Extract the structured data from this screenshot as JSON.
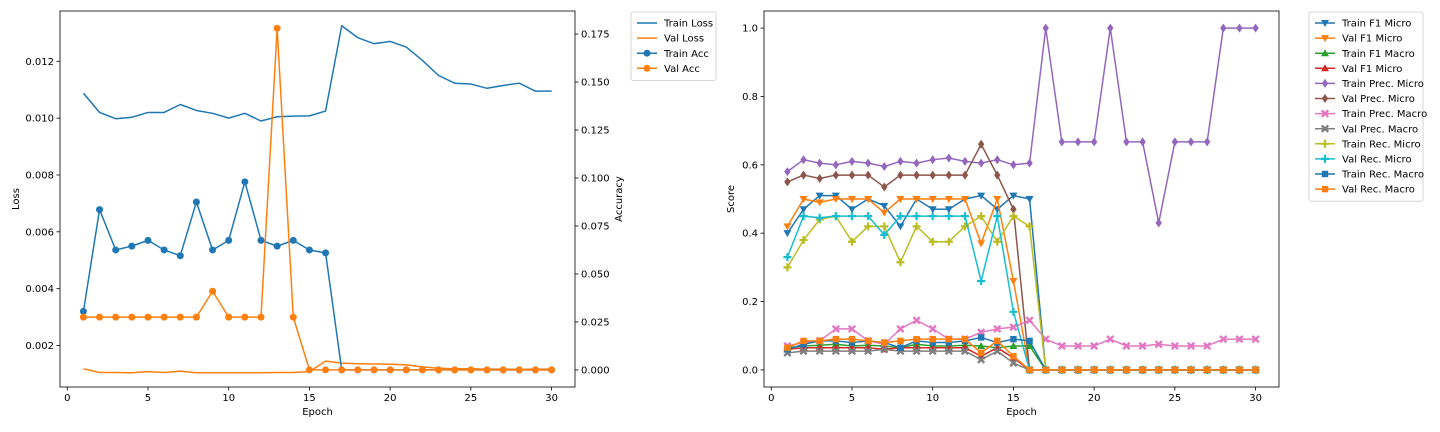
{
  "chart_data": [
    {
      "type": "line",
      "xlabel": "Epoch",
      "ylabel": "Loss",
      "y2label": "Accuracy",
      "xlim": [
        -0.45,
        31.45
      ],
      "ylim": [
        0.00054,
        0.01377
      ],
      "y2lim": [
        -0.0089,
        0.187
      ],
      "xticks": [
        0,
        5,
        10,
        15,
        20,
        25,
        30
      ],
      "yticks": [
        0.002,
        0.004,
        0.006,
        0.008,
        0.01,
        0.012
      ],
      "yticklabels": [
        "0.002",
        "0.004",
        "0.006",
        "0.008",
        "0.010",
        "0.012"
      ],
      "y2ticks": [
        0.0,
        0.025,
        0.05,
        0.075,
        0.1,
        0.125,
        0.15,
        0.175
      ],
      "y2ticklabels": [
        "0.000",
        "0.025",
        "0.050",
        "0.075",
        "0.100",
        "0.125",
        "0.150",
        "0.175"
      ],
      "legend_position": "outside-right",
      "x": [
        1,
        2,
        3,
        4,
        5,
        6,
        7,
        8,
        9,
        10,
        11,
        12,
        13,
        14,
        15,
        16,
        17,
        18,
        19,
        20,
        21,
        22,
        23,
        24,
        25,
        26,
        27,
        28,
        29,
        30
      ],
      "series": [
        {
          "name": "Train Loss",
          "axis": "left",
          "color": "#1f77b4",
          "marker": "none",
          "values": [
            0.01088,
            0.0102,
            0.00998,
            0.01003,
            0.0102,
            0.0102,
            0.01048,
            0.01027,
            0.01017,
            0.01,
            0.01017,
            0.0099,
            0.01005,
            0.01007,
            0.01008,
            0.01025,
            0.01325,
            0.01283,
            0.01262,
            0.0127,
            0.0125,
            0.01203,
            0.0115,
            0.01123,
            0.0112,
            0.01105,
            0.01115,
            0.01123,
            0.01095,
            0.01095
          ]
        },
        {
          "name": "Val Loss",
          "axis": "left",
          "color": "#ff7f0e",
          "marker": "none",
          "values": [
            0.00118,
            0.00105,
            0.00105,
            0.00104,
            0.00108,
            0.00105,
            0.0011,
            0.00104,
            0.00104,
            0.00104,
            0.00104,
            0.00104,
            0.00105,
            0.00105,
            0.00108,
            0.00145,
            0.00138,
            0.00136,
            0.00135,
            0.00134,
            0.00132,
            0.00125,
            0.0012,
            0.00118,
            0.00118,
            0.00117,
            0.00117,
            0.00116,
            0.00117,
            0.00117
          ]
        },
        {
          "name": "Train Acc",
          "axis": "right",
          "color": "#1f77b4",
          "marker": "circle",
          "values": [
            0.0305,
            0.0835,
            0.0625,
            0.0645,
            0.0675,
            0.0625,
            0.0595,
            0.0875,
            0.0625,
            0.0675,
            0.098,
            0.0675,
            0.0645,
            0.0675,
            0.0625,
            0.061,
            0.0,
            0.0,
            0.0,
            0.0,
            0.0,
            0.0,
            0.0,
            0.0,
            0.0,
            0.0,
            0.0,
            0.0,
            0.0,
            0.0
          ]
        },
        {
          "name": "Val Acc",
          "axis": "right",
          "color": "#ff7f0e",
          "marker": "circle",
          "values": [
            0.0275,
            0.0275,
            0.0275,
            0.0275,
            0.0275,
            0.0275,
            0.0275,
            0.0275,
            0.041,
            0.0275,
            0.0275,
            0.0275,
            0.178,
            0.0275,
            0.0,
            0.0,
            0.0,
            0.0,
            0.0,
            0.0,
            0.0,
            0.0,
            0.0,
            0.0,
            0.0,
            0.0,
            0.0,
            0.0,
            0.0,
            0.0
          ]
        }
      ]
    },
    {
      "type": "line",
      "xlabel": "Epoch",
      "ylabel": "Score",
      "xlim": [
        -0.45,
        31.45
      ],
      "ylim": [
        -0.05,
        1.05
      ],
      "xticks": [
        0,
        5,
        10,
        15,
        20,
        25,
        30
      ],
      "yticks": [
        0.0,
        0.2,
        0.4,
        0.6,
        0.8,
        1.0
      ],
      "yticklabels": [
        "0.0",
        "0.2",
        "0.4",
        "0.6",
        "0.8",
        "1.0"
      ],
      "legend_position": "outside-right",
      "x": [
        1,
        2,
        3,
        4,
        5,
        6,
        7,
        8,
        9,
        10,
        11,
        12,
        13,
        14,
        15,
        16,
        17,
        18,
        19,
        20,
        21,
        22,
        23,
        24,
        25,
        26,
        27,
        28,
        29,
        30
      ],
      "series": [
        {
          "name": "Train F1 Micro",
          "color": "#1f77b4",
          "marker": "triangle-down",
          "values": [
            0.4,
            0.47,
            0.51,
            0.51,
            0.47,
            0.5,
            0.48,
            0.42,
            0.5,
            0.47,
            0.47,
            0.5,
            0.51,
            0.47,
            0.51,
            0.5,
            0,
            0,
            0,
            0,
            0,
            0,
            0,
            0,
            0,
            0,
            0,
            0,
            0,
            0
          ]
        },
        {
          "name": "Val F1 Micro",
          "color": "#ff7f0e",
          "marker": "triangle-down",
          "values": [
            0.42,
            0.5,
            0.49,
            0.5,
            0.5,
            0.5,
            0.46,
            0.5,
            0.5,
            0.5,
            0.5,
            0.5,
            0.37,
            0.5,
            0.26,
            0,
            0,
            0,
            0,
            0,
            0,
            0,
            0,
            0,
            0,
            0,
            0,
            0,
            0,
            0
          ]
        },
        {
          "name": "Train F1 Macro",
          "color": "#2ca02c",
          "marker": "triangle-up",
          "values": [
            0.065,
            0.07,
            0.072,
            0.075,
            0.07,
            0.072,
            0.07,
            0.065,
            0.075,
            0.07,
            0.07,
            0.072,
            0.07,
            0.065,
            0.07,
            0.07,
            0,
            0,
            0,
            0,
            0,
            0,
            0,
            0,
            0,
            0,
            0,
            0,
            0,
            0
          ]
        },
        {
          "name": "Val F1 Micro",
          "color": "#d62728",
          "marker": "triangle-up",
          "values": [
            0.06,
            0.065,
            0.065,
            0.065,
            0.065,
            0.065,
            0.06,
            0.065,
            0.065,
            0.065,
            0.065,
            0.065,
            0.04,
            0.065,
            0.035,
            0,
            0,
            0,
            0,
            0,
            0,
            0,
            0,
            0,
            0,
            0,
            0,
            0,
            0,
            0
          ]
        },
        {
          "name": "Train Prec. Micro",
          "color": "#9467bd",
          "marker": "diamond",
          "values": [
            0.58,
            0.615,
            0.605,
            0.6,
            0.61,
            0.605,
            0.595,
            0.61,
            0.605,
            0.615,
            0.62,
            0.61,
            0.605,
            0.615,
            0.6,
            0.605,
            1.0,
            0.667,
            0.667,
            0.667,
            1.0,
            0.667,
            0.667,
            0.43,
            0.667,
            0.667,
            0.667,
            1.0,
            1.0,
            1.0
          ]
        },
        {
          "name": "Val Prec. Micro",
          "color": "#8c564b",
          "marker": "diamond",
          "values": [
            0.55,
            0.57,
            0.56,
            0.57,
            0.57,
            0.57,
            0.535,
            0.57,
            0.57,
            0.57,
            0.57,
            0.57,
            0.66,
            0.57,
            0.47,
            0,
            0,
            0,
            0,
            0,
            0,
            0,
            0,
            0,
            0,
            0,
            0,
            0,
            0,
            0
          ]
        },
        {
          "name": "Train Prec. Macro",
          "color": "#e377c2",
          "marker": "x",
          "values": [
            0.07,
            0.08,
            0.085,
            0.12,
            0.12,
            0.085,
            0.075,
            0.12,
            0.145,
            0.12,
            0.09,
            0.09,
            0.11,
            0.12,
            0.125,
            0.145,
            0.09,
            0.07,
            0.07,
            0.07,
            0.09,
            0.07,
            0.07,
            0.075,
            0.07,
            0.07,
            0.07,
            0.09,
            0.09,
            0.09
          ]
        },
        {
          "name": "Val Prec. Macro",
          "color": "#7f7f7f",
          "marker": "x",
          "values": [
            0.05,
            0.055,
            0.055,
            0.055,
            0.055,
            0.055,
            0.06,
            0.055,
            0.055,
            0.055,
            0.055,
            0.055,
            0.03,
            0.055,
            0.02,
            0,
            0,
            0,
            0,
            0,
            0,
            0,
            0,
            0,
            0,
            0,
            0,
            0,
            0,
            0
          ]
        },
        {
          "name": "Train Rec. Micro",
          "color": "#bcbd22",
          "marker": "plus",
          "values": [
            0.3,
            0.38,
            0.44,
            0.45,
            0.375,
            0.42,
            0.42,
            0.315,
            0.42,
            0.375,
            0.375,
            0.42,
            0.45,
            0.375,
            0.45,
            0.42,
            0,
            0,
            0,
            0,
            0,
            0,
            0,
            0,
            0,
            0,
            0,
            0,
            0,
            0
          ]
        },
        {
          "name": "Val Rec. Micro",
          "color": "#17becf",
          "marker": "plus",
          "values": [
            0.33,
            0.45,
            0.445,
            0.45,
            0.45,
            0.45,
            0.395,
            0.45,
            0.45,
            0.45,
            0.45,
            0.45,
            0.26,
            0.45,
            0.17,
            0,
            0,
            0,
            0,
            0,
            0,
            0,
            0,
            0,
            0,
            0,
            0,
            0,
            0,
            0
          ]
        },
        {
          "name": "Train Rec. Macro",
          "color": "#1f77b4",
          "marker": "square",
          "values": [
            0.06,
            0.075,
            0.085,
            0.085,
            0.08,
            0.085,
            0.08,
            0.065,
            0.085,
            0.08,
            0.08,
            0.085,
            0.095,
            0.08,
            0.09,
            0.085,
            0,
            0,
            0,
            0,
            0,
            0,
            0,
            0,
            0,
            0,
            0,
            0,
            0,
            0
          ]
        },
        {
          "name": "Val Rec. Macro",
          "color": "#ff7f0e",
          "marker": "square",
          "values": [
            0.065,
            0.085,
            0.085,
            0.09,
            0.09,
            0.085,
            0.08,
            0.085,
            0.09,
            0.09,
            0.09,
            0.09,
            0.05,
            0.085,
            0.04,
            0,
            0,
            0,
            0,
            0,
            0,
            0,
            0,
            0,
            0,
            0,
            0,
            0,
            0,
            0
          ]
        }
      ]
    }
  ]
}
